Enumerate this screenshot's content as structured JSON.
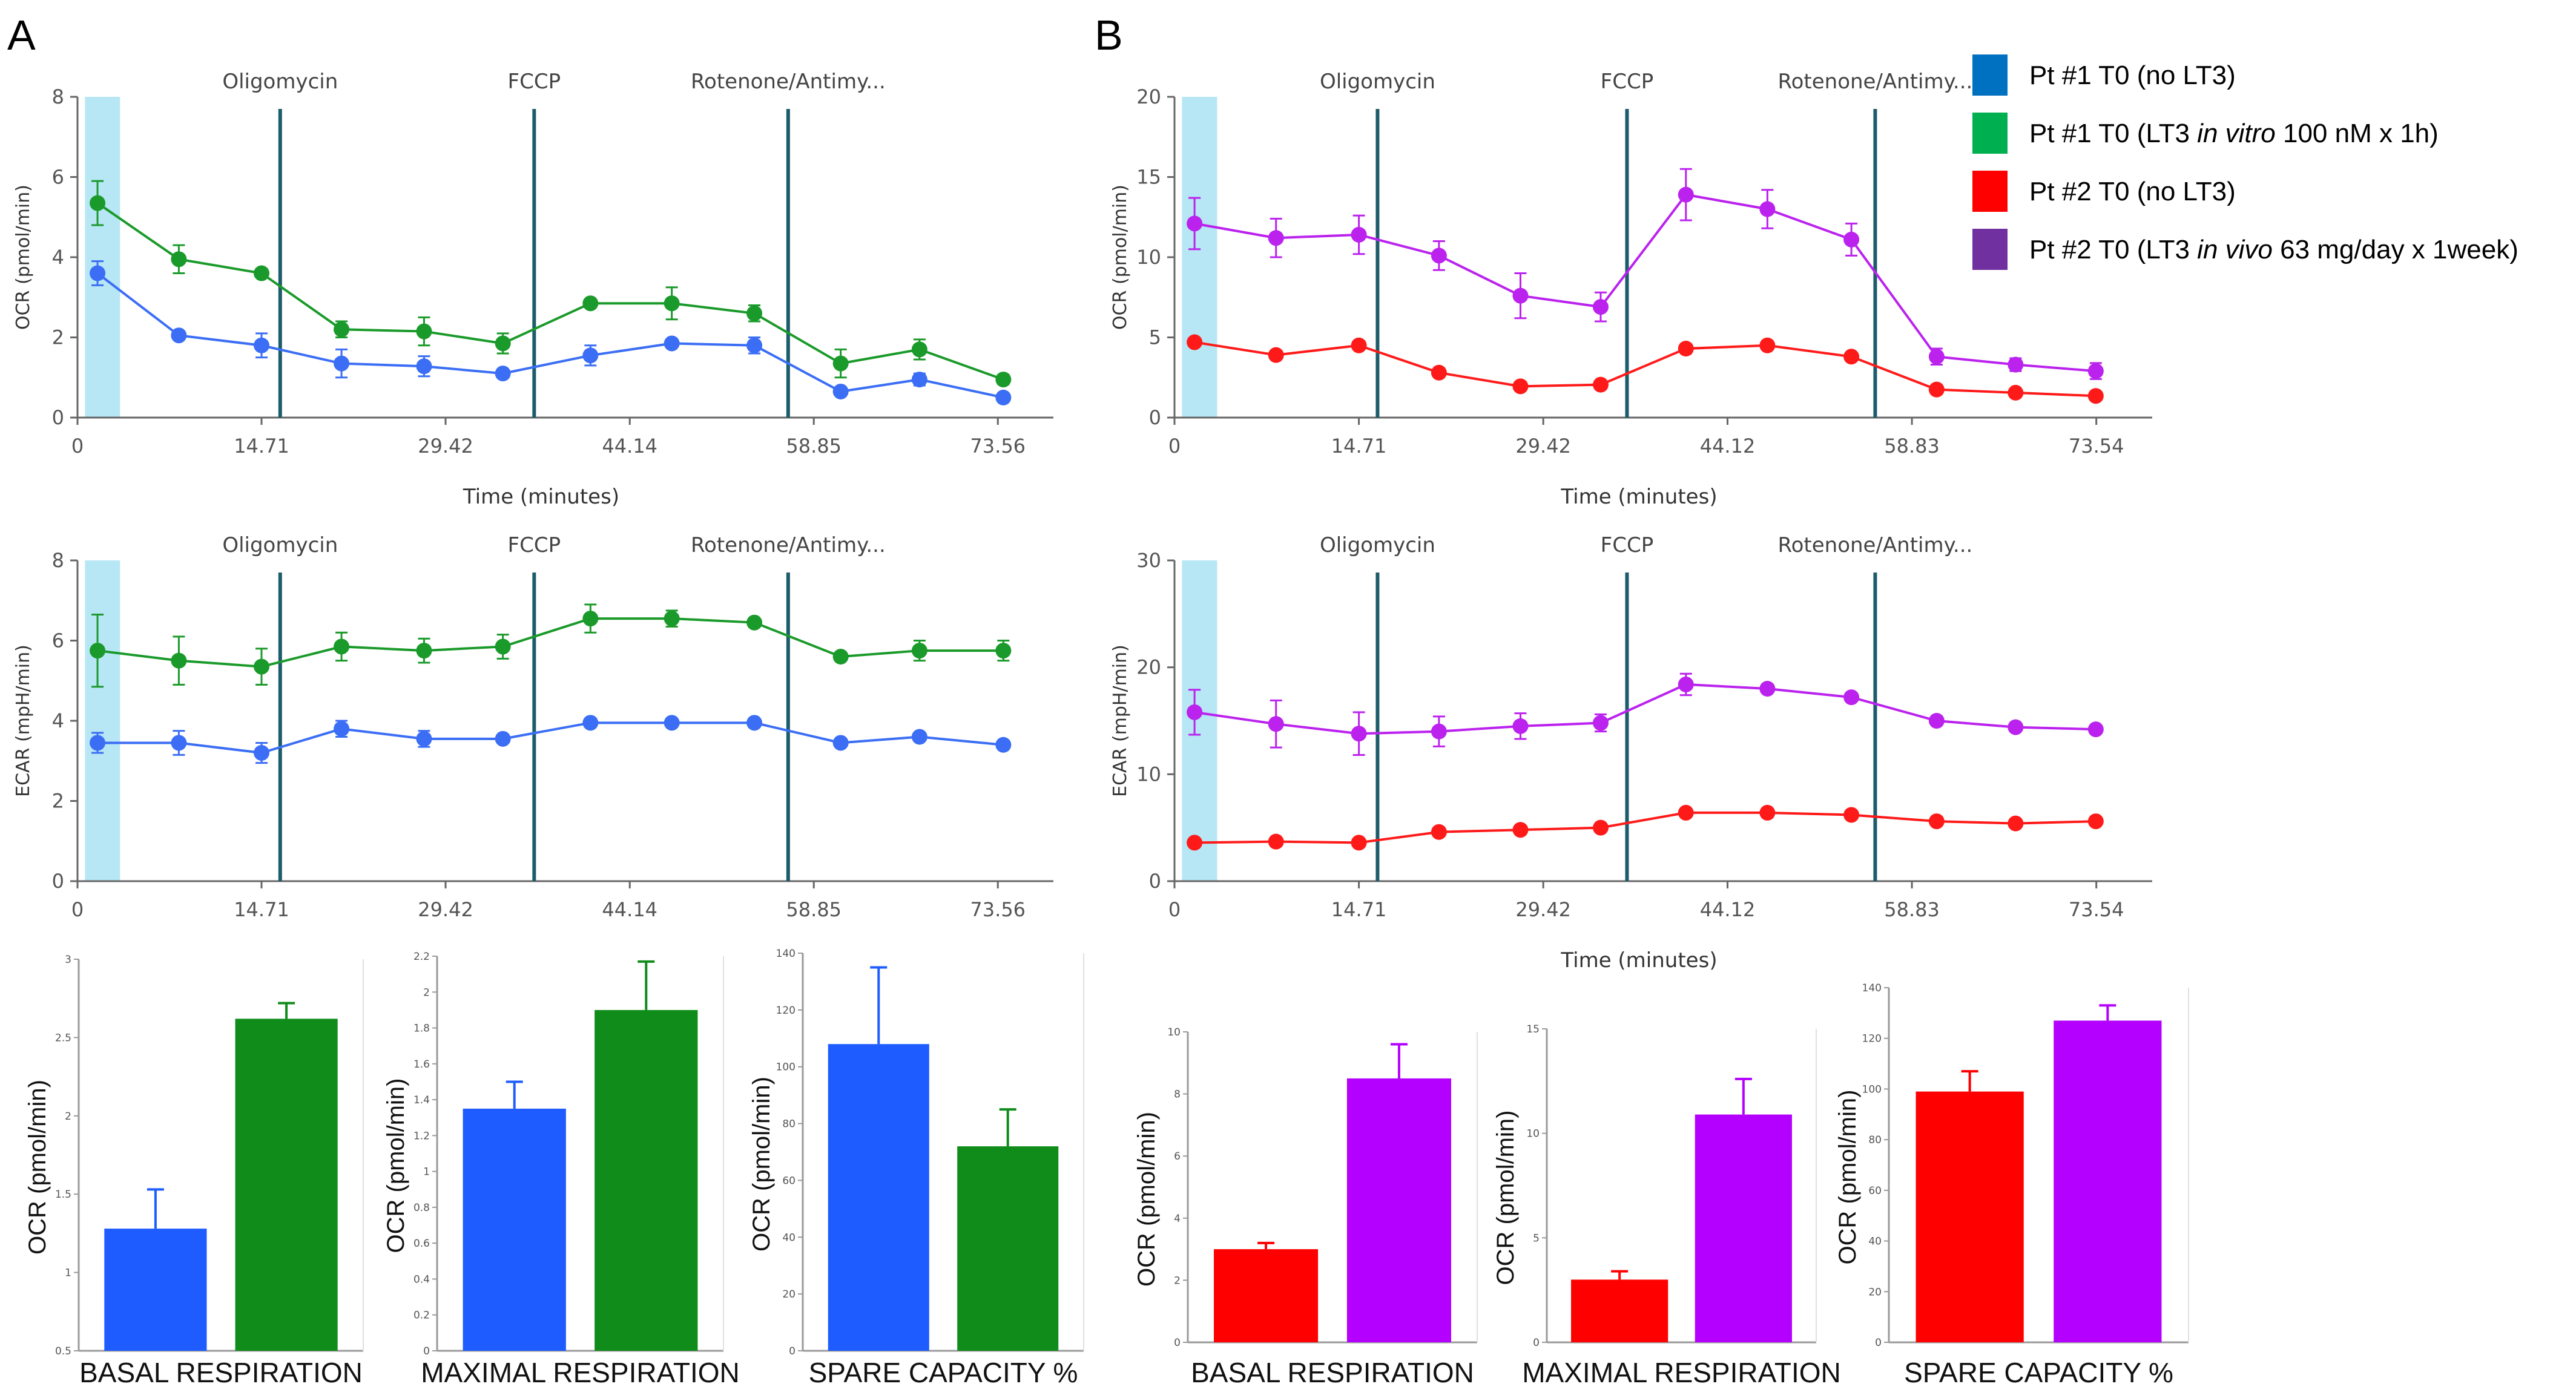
{
  "panels": [
    "A",
    "B"
  ],
  "colors": {
    "blue_line": "#3b6ef5",
    "green": "#1a9a2a",
    "red": "#ff1a1a",
    "purple": "#bb22ee",
    "blue_bar": "#1f5cff",
    "green_bar": "#0f8c1a",
    "red_bar": "#ff0000",
    "purple_bar": "#b300ff",
    "injection_line": "#1d5c6b",
    "shade": "#b7e6f5",
    "legend_blue": "#0070c0",
    "legend_green": "#00b050",
    "legend_red": "#ff0000",
    "legend_purple": "#7030a0"
  },
  "legend": [
    {
      "key": "pt1_nolt3",
      "text": "Pt #1 T0 (no LT3)",
      "color": "#0070c0",
      "segments": [
        {
          "text": "Pt #1 T0 (no LT3)",
          "italic": false
        }
      ]
    },
    {
      "key": "pt1_lt3",
      "text": "Pt #1 T0 (LT3 in vitro 100 nM x 1h)",
      "color": "#00b050",
      "segments": [
        {
          "text": "Pt #1 T0 (LT3 ",
          "italic": false
        },
        {
          "text": "in vitro",
          "italic": true
        },
        {
          "text": " 100 nM x 1h)",
          "italic": false
        }
      ]
    },
    {
      "key": "pt2_nolt3",
      "text": "Pt #2 T0 (no LT3)",
      "color": "#ff0000",
      "segments": [
        {
          "text": "Pt #2 T0 (no LT3)",
          "italic": false
        }
      ]
    },
    {
      "key": "pt2_lt3",
      "text": "Pt #2 T0 (LT3 in vivo 63 mg/day x 1week)",
      "color": "#7030a0",
      "segments": [
        {
          "text": "Pt #2 T0 (LT3 ",
          "italic": false
        },
        {
          "text": "in vivo",
          "italic": true
        },
        {
          "text": " 63 mg/day x 1week)",
          "italic": false
        }
      ]
    }
  ],
  "chart_data": [
    {
      "id": "A-ocr",
      "panel": "A",
      "type": "line",
      "ylabel": "OCR (pmol/min)",
      "xlabel": "Time (minutes)",
      "xlim": [
        0,
        78
      ],
      "ylim": [
        0,
        8
      ],
      "xticks": [
        0,
        14.71,
        29.42,
        44.14,
        58.85,
        73.56
      ],
      "xtick_labels": [
        "0",
        "14.71",
        "29.42",
        "44.14",
        "58.85",
        "73.56"
      ],
      "yticks": [
        0,
        2,
        4,
        6,
        8
      ],
      "ytick_labels": [
        "0",
        "2",
        "4",
        "6",
        "8"
      ],
      "injections": [
        {
          "label": "Oligomycin",
          "x": 16.2
        },
        {
          "label": "FCCP",
          "x": 36.5
        },
        {
          "label": "Rotenone/Antimy...",
          "x": 56.8
        }
      ],
      "shade": [
        0.6,
        3.4
      ],
      "x": [
        1.6,
        8.1,
        14.71,
        21.1,
        27.7,
        34.0,
        41.0,
        47.5,
        54.1,
        61.0,
        67.3,
        74.0
      ],
      "series": [
        {
          "name": "Pt #1 T0 (no LT3)",
          "color_key": "blue_line",
          "values": [
            3.6,
            2.05,
            1.8,
            1.35,
            1.28,
            1.1,
            1.55,
            1.85,
            1.8,
            0.65,
            0.95,
            0.5
          ],
          "errors": [
            0.3,
            0.08,
            0.3,
            0.35,
            0.25,
            0.1,
            0.25,
            0.08,
            0.2,
            0.1,
            0.15,
            0.08
          ]
        },
        {
          "name": "Pt #1 T0 (LT3 in vitro 100 nM x 1h)",
          "color_key": "green",
          "values": [
            5.35,
            3.95,
            3.6,
            2.2,
            2.15,
            1.85,
            2.85,
            2.85,
            2.6,
            1.35,
            1.7,
            0.95
          ],
          "errors": [
            0.55,
            0.35,
            0.05,
            0.2,
            0.35,
            0.25,
            0.05,
            0.4,
            0.2,
            0.35,
            0.25,
            0.12
          ]
        }
      ]
    },
    {
      "id": "A-ecar",
      "panel": "A",
      "type": "line",
      "ylabel": "ECAR (mpH/min)",
      "xlabel": "",
      "xlim": [
        0,
        78
      ],
      "ylim": [
        0,
        8
      ],
      "xticks": [
        0,
        14.71,
        29.42,
        44.14,
        58.85,
        73.56
      ],
      "xtick_labels": [
        "0",
        "14.71",
        "29.42",
        "44.14",
        "58.85",
        "73.56"
      ],
      "yticks": [
        0,
        2,
        4,
        6,
        8
      ],
      "ytick_labels": [
        "0",
        "2",
        "4",
        "6",
        "8"
      ],
      "injections": [
        {
          "label": "Oligomycin",
          "x": 16.2
        },
        {
          "label": "FCCP",
          "x": 36.5
        },
        {
          "label": "Rotenone/Antimy...",
          "x": 56.8
        }
      ],
      "shade": [
        0.6,
        3.4
      ],
      "x": [
        1.6,
        8.1,
        14.71,
        21.1,
        27.7,
        34.0,
        41.0,
        47.5,
        54.1,
        61.0,
        67.3,
        74.0
      ],
      "series": [
        {
          "name": "Pt #1 T0 (no LT3)",
          "color_key": "blue_line",
          "values": [
            3.45,
            3.45,
            3.2,
            3.8,
            3.55,
            3.55,
            3.95,
            3.95,
            3.95,
            3.45,
            3.6,
            3.4
          ],
          "errors": [
            0.25,
            0.3,
            0.25,
            0.2,
            0.2,
            0.05,
            0.1,
            0.05,
            0.05,
            0.05,
            0.05,
            0.05
          ]
        },
        {
          "name": "Pt #1 T0 (LT3 in vitro 100 nM x 1h)",
          "color_key": "green",
          "values": [
            5.75,
            5.5,
            5.35,
            5.85,
            5.75,
            5.85,
            6.55,
            6.55,
            6.45,
            5.6,
            5.75,
            5.75
          ],
          "errors": [
            0.9,
            0.6,
            0.45,
            0.35,
            0.3,
            0.3,
            0.35,
            0.2,
            0.1,
            0.05,
            0.25,
            0.25
          ]
        }
      ]
    },
    {
      "id": "B-ocr",
      "panel": "B",
      "type": "line",
      "ylabel": "OCR (pmol/min)",
      "xlabel": "Time (minutes)",
      "xlim": [
        0,
        78
      ],
      "ylim": [
        0,
        20
      ],
      "xticks": [
        0,
        14.71,
        29.42,
        44.12,
        58.83,
        73.54
      ],
      "xtick_labels": [
        "0",
        "14.71",
        "29.42",
        "44.12",
        "58.83",
        "73.54"
      ],
      "yticks": [
        0,
        5,
        10,
        15,
        20
      ],
      "ytick_labels": [
        "0",
        "5",
        "10",
        "15",
        "20"
      ],
      "injections": [
        {
          "label": "Oligomycin",
          "x": 16.2
        },
        {
          "label": "FCCP",
          "x": 36.1
        },
        {
          "label": "Rotenone/Antimy...",
          "x": 55.9
        }
      ],
      "shade": [
        0.6,
        3.4
      ],
      "x": [
        1.6,
        8.1,
        14.71,
        21.1,
        27.6,
        34.0,
        40.8,
        47.3,
        54.0,
        60.8,
        67.1,
        73.5
      ],
      "series": [
        {
          "name": "Pt #2 T0 (no LT3)",
          "color_key": "red",
          "values": [
            4.7,
            3.9,
            4.5,
            2.8,
            1.95,
            2.05,
            4.3,
            4.5,
            3.8,
            1.75,
            1.55,
            1.35
          ],
          "errors": [
            0.15,
            0.15,
            0.15,
            0.2,
            0.1,
            0.1,
            0.3,
            0.2,
            0.15,
            0.15,
            0.1,
            0.1
          ]
        },
        {
          "name": "Pt #2 T0 (LT3 in vivo 63 mg/day x 1week)",
          "color_key": "purple",
          "values": [
            12.1,
            11.2,
            11.4,
            10.1,
            7.6,
            6.9,
            13.9,
            13.0,
            11.1,
            3.8,
            3.3,
            2.9
          ],
          "errors": [
            1.6,
            1.2,
            1.2,
            0.9,
            1.4,
            0.9,
            1.6,
            1.2,
            1.0,
            0.5,
            0.4,
            0.5
          ]
        }
      ]
    },
    {
      "id": "B-ecar",
      "panel": "B",
      "type": "line",
      "ylabel": "ECAR (mpH/min)",
      "xlabel": "Time (minutes)",
      "xlim": [
        0,
        78
      ],
      "ylim": [
        0,
        30
      ],
      "xticks": [
        0,
        14.71,
        29.42,
        44.12,
        58.83,
        73.54
      ],
      "xtick_labels": [
        "0",
        "14.71",
        "29.42",
        "44.12",
        "58.83",
        "73.54"
      ],
      "yticks": [
        0,
        10,
        20,
        30
      ],
      "ytick_labels": [
        "0",
        "10",
        "20",
        "30"
      ],
      "injections": [
        {
          "label": "Oligomycin",
          "x": 16.2
        },
        {
          "label": "FCCP",
          "x": 36.1
        },
        {
          "label": "Rotenone/Antimy...",
          "x": 55.9
        }
      ],
      "shade": [
        0.6,
        3.4
      ],
      "x": [
        1.6,
        8.1,
        14.71,
        21.1,
        27.6,
        34.0,
        40.8,
        47.3,
        54.0,
        60.8,
        67.1,
        73.5
      ],
      "series": [
        {
          "name": "Pt #2 T0 (no LT3)",
          "color_key": "red",
          "values": [
            3.6,
            3.7,
            3.6,
            4.6,
            4.8,
            5.0,
            6.4,
            6.4,
            6.2,
            5.6,
            5.4,
            5.6
          ],
          "errors": [
            0.2,
            0.2,
            0.2,
            0.2,
            0.2,
            0.2,
            0.2,
            0.2,
            0.2,
            0.2,
            0.2,
            0.2
          ]
        },
        {
          "name": "Pt #2 T0 (LT3 in vivo 63 mg/day x 1week)",
          "color_key": "purple",
          "values": [
            15.8,
            14.7,
            13.8,
            14.0,
            14.5,
            14.8,
            18.4,
            18.0,
            17.2,
            15.0,
            14.4,
            14.2
          ],
          "errors": [
            2.1,
            2.2,
            2.0,
            1.4,
            1.2,
            0.8,
            1.0,
            0.3,
            0.3,
            0.3,
            0.3,
            0.3
          ]
        }
      ]
    },
    {
      "id": "A-basal",
      "panel": "A",
      "type": "bar",
      "title": "BASAL RESPIRATION",
      "ylabel": "OCR (pmol/min)",
      "ylim": [
        0.5,
        3
      ],
      "yticks": [
        0.5,
        1,
        1.5,
        2,
        2.5,
        3
      ],
      "ytick_labels": [
        "0.5",
        "1",
        "1.5",
        "2",
        "2.5",
        "3"
      ],
      "categories": [
        "Pt #1 T0 (no LT3)",
        "Pt #1 T0 (LT3 in vitro 100 nM x 1h)"
      ],
      "values": [
        1.28,
        2.62
      ],
      "errors": [
        0.25,
        0.1
      ],
      "color_keys": [
        "blue_bar",
        "green_bar"
      ]
    },
    {
      "id": "A-maximal",
      "panel": "A",
      "type": "bar",
      "title": "MAXIMAL RESPIRATION",
      "ylabel": "OCR (pmol/min)",
      "ylim": [
        0,
        2.2
      ],
      "yticks": [
        0,
        0.2,
        0.4,
        0.6,
        0.8,
        1,
        1.2,
        1.4,
        1.6,
        1.8,
        2,
        2.2
      ],
      "ytick_labels": [
        "0",
        "0.2",
        "0.4",
        "0.6",
        "0.8",
        "1",
        "1.2",
        "1.4",
        "1.6",
        "1.8",
        "2",
        "2.2"
      ],
      "categories": [
        "Pt #1 T0 (no LT3)",
        "Pt #1 T0 (LT3 in vitro 100 nM x 1h)"
      ],
      "values": [
        1.35,
        1.9
      ],
      "errors": [
        0.15,
        0.27
      ],
      "color_keys": [
        "blue_bar",
        "green_bar"
      ]
    },
    {
      "id": "A-spare",
      "panel": "A",
      "type": "bar",
      "title": "SPARE CAPACITY %",
      "ylabel": "OCR (pmol/min)",
      "ylim": [
        0,
        140
      ],
      "yticks": [
        0,
        20,
        40,
        60,
        80,
        100,
        120,
        140
      ],
      "ytick_labels": [
        "0",
        "20",
        "40",
        "60",
        "80",
        "100",
        "120",
        "140"
      ],
      "categories": [
        "Pt #1 T0 (no LT3)",
        "Pt #1 T0 (LT3 in vitro 100 nM x 1h)"
      ],
      "values": [
        108,
        72
      ],
      "errors": [
        27,
        13
      ],
      "color_keys": [
        "blue_bar",
        "green_bar"
      ]
    },
    {
      "id": "B-basal",
      "panel": "B",
      "type": "bar",
      "title": "BASAL RESPIRATION",
      "ylabel": "OCR (pmol/min)",
      "ylim": [
        0,
        10
      ],
      "yticks": [
        0,
        2,
        4,
        6,
        8,
        10
      ],
      "ytick_labels": [
        "0",
        "2",
        "4",
        "6",
        "8",
        "10"
      ],
      "categories": [
        "Pt #2 T0 (no LT3)",
        "Pt #2 T0 (LT3 in vivo 63 mg/day x 1week)"
      ],
      "values": [
        3.0,
        8.5
      ],
      "errors": [
        0.2,
        1.1
      ],
      "color_keys": [
        "red_bar",
        "purple_bar"
      ]
    },
    {
      "id": "B-maximal",
      "panel": "B",
      "type": "bar",
      "title": "MAXIMAL RESPIRATION",
      "ylabel": "OCR (pmol/min)",
      "ylim": [
        0,
        15
      ],
      "yticks": [
        0,
        5,
        10,
        15
      ],
      "ytick_labels": [
        "0",
        "5",
        "10",
        "15"
      ],
      "categories": [
        "Pt #2 T0 (no LT3)",
        "Pt #2 T0 (LT3 in vivo 63 mg/day x 1week)"
      ],
      "values": [
        3.0,
        10.9
      ],
      "errors": [
        0.4,
        1.7
      ],
      "color_keys": [
        "red_bar",
        "purple_bar"
      ]
    },
    {
      "id": "B-spare",
      "panel": "B",
      "type": "bar",
      "title": "SPARE CAPACITY %",
      "ylabel": "OCR (pmol/min)",
      "ylim": [
        0,
        140
      ],
      "yticks": [
        0,
        20,
        40,
        60,
        80,
        100,
        120,
        140
      ],
      "ytick_labels": [
        "0",
        "20",
        "40",
        "60",
        "80",
        "100",
        "120",
        "140"
      ],
      "categories": [
        "Pt #2 T0 (no LT3)",
        "Pt #2 T0 (LT3 in vivo 63 mg/day x 1week)"
      ],
      "values": [
        99,
        127
      ],
      "errors": [
        8,
        6
      ],
      "color_keys": [
        "red_bar",
        "purple_bar"
      ]
    }
  ]
}
